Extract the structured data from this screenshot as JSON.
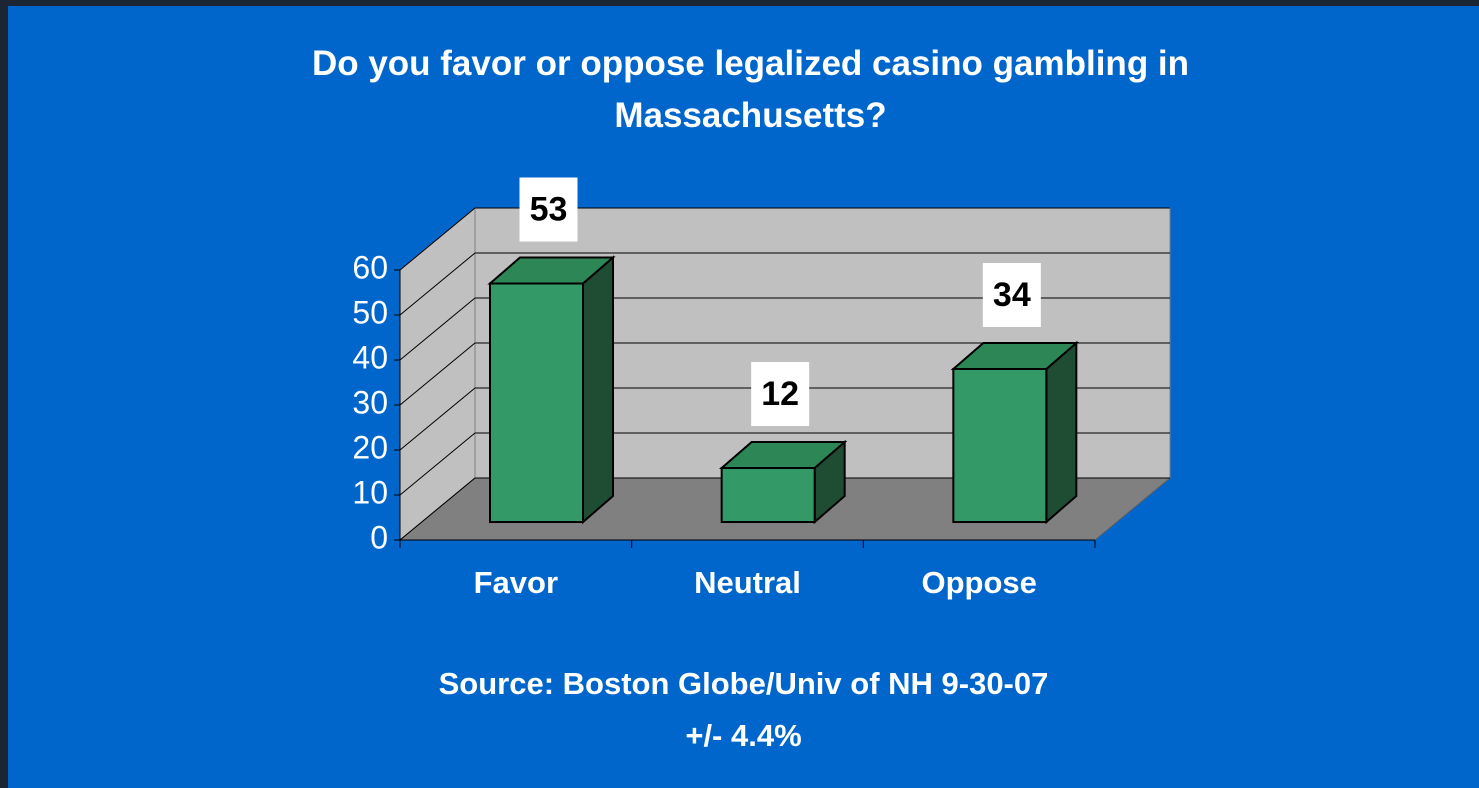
{
  "chart_data": {
    "type": "bar3d",
    "title": "Do you favor or oppose legalized casino gambling in Massachusetts?",
    "categories": [
      "Favor",
      "Neutral",
      "Oppose"
    ],
    "values": [
      53,
      12,
      34
    ],
    "color": "#339966",
    "ylim": [
      0,
      60
    ],
    "yticks": [
      0,
      10,
      20,
      30,
      40,
      50,
      60
    ],
    "grid": true,
    "annotations": [
      "Source: Boston Globe/Univ of NH 9-30-07",
      "+/- 4.4%"
    ]
  }
}
